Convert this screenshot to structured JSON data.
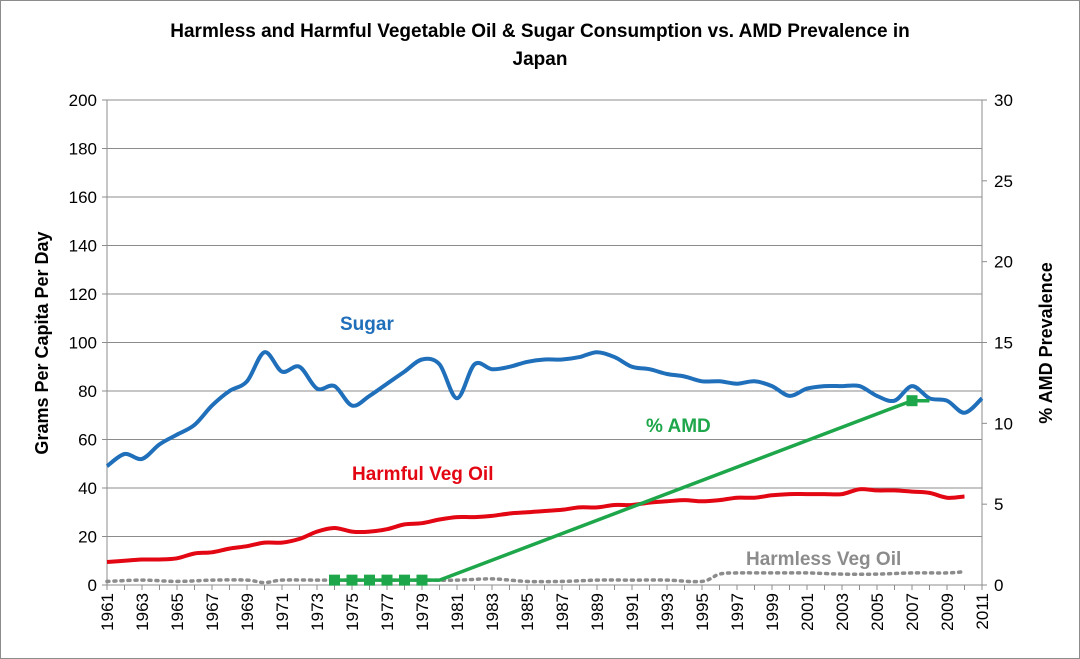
{
  "chart_data": {
    "type": "line",
    "title_line1": "Harmless and Harmful Vegetable Oil & Sugar Consumption vs. AMD Prevalence in",
    "title_line2": "Japan",
    "ylabel_left": "Grams Per Capita Per Day",
    "ylabel_right": "% AMD Prevalence",
    "ylim_left": [
      0,
      200
    ],
    "ylim_right": [
      0,
      30
    ],
    "left_ticks": [
      "0",
      "20",
      "40",
      "60",
      "80",
      "100",
      "120",
      "140",
      "160",
      "180",
      "200"
    ],
    "right_ticks": [
      "0",
      "5",
      "10",
      "15",
      "20",
      "25",
      "30"
    ],
    "x_tick_labels": [
      "1961",
      "1963",
      "1965",
      "1967",
      "1969",
      "1971",
      "1973",
      "1975",
      "1977",
      "1979",
      "1981",
      "1983",
      "1985",
      "1987",
      "1989",
      "1991",
      "1993",
      "1995",
      "1997",
      "1999",
      "2001",
      "2003",
      "2005",
      "2007",
      "2009",
      "2011"
    ],
    "xlim": [
      1961,
      2011
    ],
    "gridlines": true,
    "series": [
      {
        "name": "Sugar",
        "axis": "left",
        "color": "#1f6fba",
        "x": [
          1961,
          1962,
          1963,
          1964,
          1965,
          1966,
          1967,
          1968,
          1969,
          1970,
          1971,
          1972,
          1973,
          1974,
          1975,
          1976,
          1977,
          1978,
          1979,
          1980,
          1981,
          1982,
          1983,
          1984,
          1985,
          1986,
          1987,
          1988,
          1989,
          1990,
          1991,
          1992,
          1993,
          1994,
          1995,
          1996,
          1997,
          1998,
          1999,
          2000,
          2001,
          2002,
          2003,
          2004,
          2005,
          2006,
          2007,
          2008,
          2009,
          2010,
          2011
        ],
        "y": [
          49,
          54,
          52,
          58,
          62,
          66,
          74,
          80,
          84,
          96,
          88,
          90,
          81,
          82,
          74,
          78,
          83,
          88,
          93,
          91,
          77,
          91,
          89,
          90,
          92,
          93,
          93,
          94,
          96,
          94,
          90,
          89,
          87,
          86,
          84,
          84,
          83,
          84,
          82,
          78,
          81,
          82,
          82,
          82,
          78,
          76,
          82,
          77,
          76,
          71,
          77
        ]
      },
      {
        "name": "Harmful Veg Oil",
        "axis": "left",
        "color": "#e30613",
        "x": [
          1961,
          1962,
          1963,
          1964,
          1965,
          1966,
          1967,
          1968,
          1969,
          1970,
          1971,
          1972,
          1973,
          1974,
          1975,
          1976,
          1977,
          1978,
          1979,
          1980,
          1981,
          1982,
          1983,
          1984,
          1985,
          1986,
          1987,
          1988,
          1989,
          1990,
          1991,
          1992,
          1993,
          1994,
          1995,
          1996,
          1997,
          1998,
          1999,
          2000,
          2001,
          2002,
          2003,
          2004,
          2005,
          2006,
          2007,
          2008,
          2009,
          2010
        ],
        "y": [
          9.5,
          10,
          10.5,
          10.5,
          11,
          13,
          13.5,
          15,
          16,
          17.5,
          17.5,
          19,
          22,
          23.5,
          22,
          22,
          23,
          25,
          25.5,
          27,
          28,
          28,
          28.5,
          29.5,
          30,
          30.5,
          31,
          32,
          32,
          33,
          33,
          34,
          34.5,
          35,
          34.5,
          35,
          36,
          36,
          37,
          37.5,
          37.5,
          37.5,
          37.5,
          39.5,
          39,
          39,
          38.5,
          38,
          36,
          36.5
        ]
      },
      {
        "name": "Harmless Veg Oil",
        "axis": "left",
        "color": "#8c8c8c",
        "x": [
          1961,
          1963,
          1965,
          1967,
          1969,
          1970,
          1971,
          1973,
          1975,
          1977,
          1979,
          1981,
          1983,
          1985,
          1987,
          1989,
          1991,
          1993,
          1995,
          1996,
          1997,
          1999,
          2001,
          2003,
          2005,
          2007,
          2009,
          2010
        ],
        "y": [
          1.5,
          2,
          1.5,
          2,
          2,
          1,
          2,
          2,
          2,
          2,
          2,
          2,
          2.5,
          1.5,
          1.5,
          2,
          2,
          2,
          1.5,
          4.5,
          5,
          5,
          5,
          4.5,
          4.5,
          5,
          5,
          5.5
        ]
      },
      {
        "name": "% AMD",
        "axis": "right",
        "color": "#1ea64a",
        "x": [
          1974,
          1975,
          1976,
          1977,
          1978,
          1979,
          1980,
          2007,
          2008
        ],
        "y": [
          0.3,
          0.3,
          0.3,
          0.3,
          0.3,
          0.3,
          0.3,
          11.4,
          11.4
        ],
        "markers_x": [
          1974,
          1975,
          1976,
          1977,
          1978,
          1979,
          2007
        ]
      }
    ]
  }
}
